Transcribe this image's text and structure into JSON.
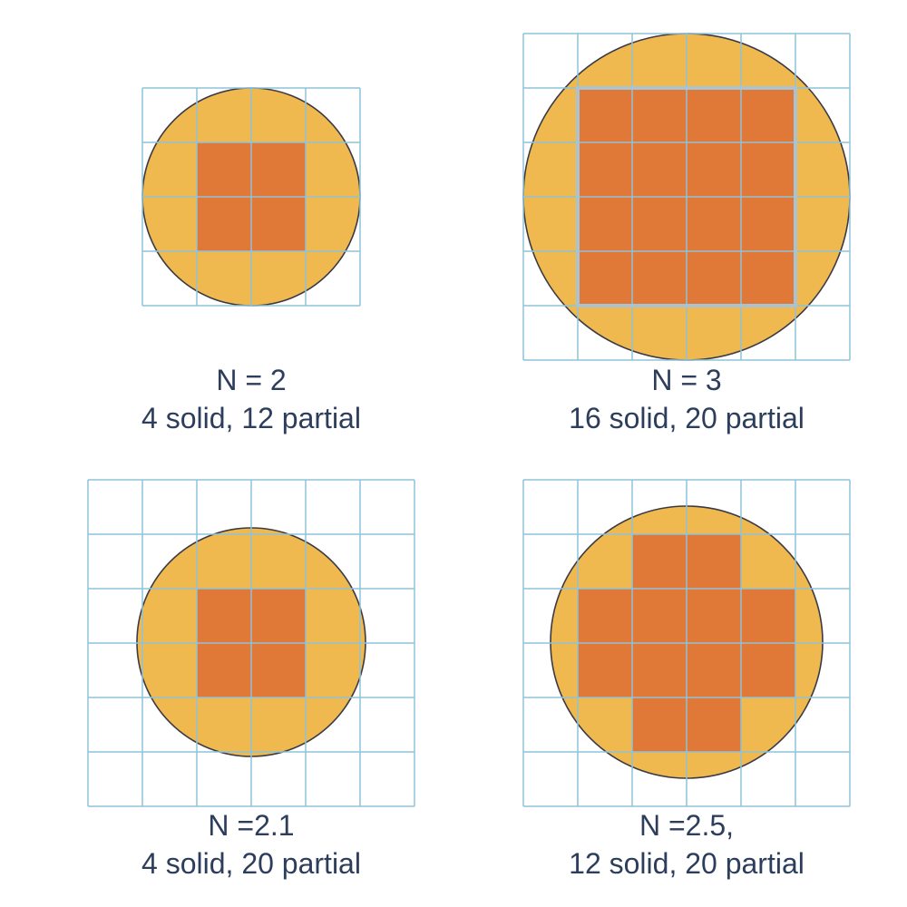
{
  "colors": {
    "partial_fill": "#efb94f",
    "solid_fill": "#e07838",
    "grid_line": "#8fc3d8",
    "circle_outline": "#3a3a46",
    "caption_text": "#2c3e5c"
  },
  "panels": [
    {
      "id": "n2",
      "title": "N = 2",
      "counts": "4 solid, 12 partial",
      "N": 2,
      "grid_columns": 4,
      "grid_rows": 4,
      "solid_cells": [
        [
          1,
          1
        ],
        [
          2,
          1
        ],
        [
          1,
          2
        ],
        [
          2,
          2
        ]
      ]
    },
    {
      "id": "n3",
      "title": "N = 3",
      "counts": "16 solid, 20 partial",
      "N": 3,
      "grid_columns": 6,
      "grid_rows": 6,
      "solid_cells": [
        [
          1,
          1
        ],
        [
          2,
          1
        ],
        [
          3,
          1
        ],
        [
          4,
          1
        ],
        [
          1,
          2
        ],
        [
          2,
          2
        ],
        [
          3,
          2
        ],
        [
          4,
          2
        ],
        [
          1,
          3
        ],
        [
          2,
          3
        ],
        [
          3,
          3
        ],
        [
          4,
          3
        ],
        [
          1,
          4
        ],
        [
          2,
          4
        ],
        [
          3,
          4
        ],
        [
          4,
          4
        ]
      ]
    },
    {
      "id": "n21",
      "title": "N =2.1",
      "counts": "4 solid, 20 partial",
      "N": 2.1,
      "grid_columns": 6,
      "grid_rows": 6,
      "solid_cells": [
        [
          2,
          2
        ],
        [
          3,
          2
        ],
        [
          2,
          3
        ],
        [
          3,
          3
        ]
      ]
    },
    {
      "id": "n25",
      "title": "N =2.5,",
      "counts": "12 solid, 20 partial",
      "N": 2.5,
      "grid_columns": 6,
      "grid_rows": 6,
      "solid_cells": [
        [
          2,
          1
        ],
        [
          3,
          1
        ],
        [
          1,
          2
        ],
        [
          2,
          2
        ],
        [
          3,
          2
        ],
        [
          4,
          2
        ],
        [
          1,
          3
        ],
        [
          2,
          3
        ],
        [
          3,
          3
        ],
        [
          4,
          3
        ],
        [
          2,
          4
        ],
        [
          3,
          4
        ]
      ]
    }
  ]
}
